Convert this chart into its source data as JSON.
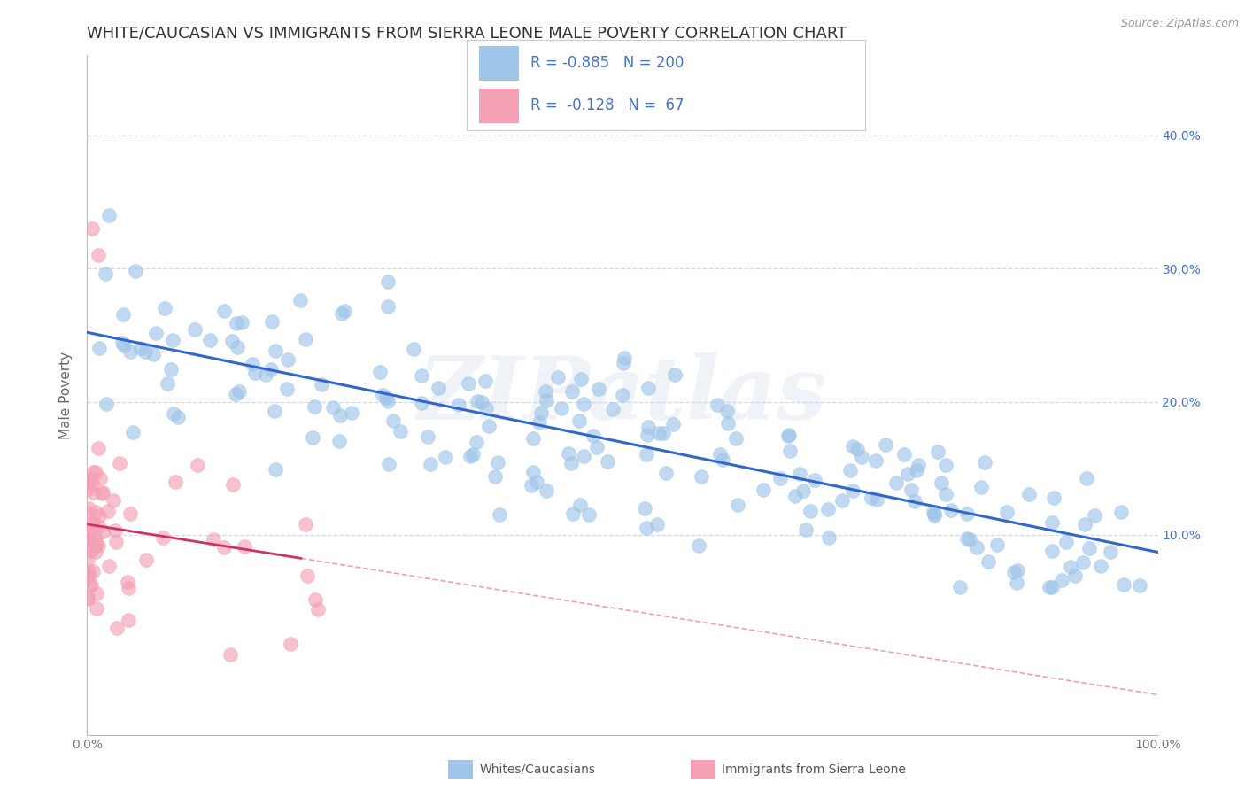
{
  "title": "WHITE/CAUCASIAN VS IMMIGRANTS FROM SIERRA LEONE MALE POVERTY CORRELATION CHART",
  "source": "Source: ZipAtlas.com",
  "ylabel": "Male Poverty",
  "xlim": [
    0,
    1.0
  ],
  "ylim": [
    -0.05,
    0.46
  ],
  "blue_R": -0.885,
  "blue_N": 200,
  "pink_R": -0.128,
  "pink_N": 67,
  "blue_color": "#9fc5e8",
  "pink_color": "#f4a0b5",
  "blue_line_color": "#3366cc",
  "pink_line_color": "#cc3366",
  "watermark_text": "ZIPatlas",
  "legend_blue_label": "Whites/Caucasians",
  "legend_pink_label": "Immigrants from Sierra Leone",
  "background_color": "#ffffff",
  "grid_color": "#c8d4e8",
  "title_fontsize": 13,
  "axis_label_fontsize": 11,
  "tick_label_fontsize": 10,
  "legend_text_color": "#4472c4",
  "y_ticks": [
    0.1,
    0.2,
    0.3,
    0.4
  ],
  "y_tick_labels": [
    "10.0%",
    "20.0%",
    "30.0%",
    "40.0%"
  ],
  "x_tick_labels": [
    "0.0%",
    "",
    "",
    "",
    "",
    "",
    "",
    "",
    "",
    "",
    "100.0%"
  ]
}
